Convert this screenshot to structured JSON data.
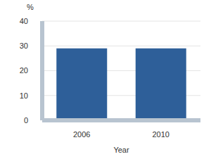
{
  "chart_data": {
    "type": "bar",
    "categories": [
      "2006",
      "2010"
    ],
    "values": [
      29,
      29
    ],
    "color": "#2e5f99",
    "x_label": "Year",
    "y_label": "%",
    "ylim": [
      0,
      40
    ],
    "yticks": [
      0,
      10,
      20,
      30,
      40
    ],
    "grid": true
  }
}
